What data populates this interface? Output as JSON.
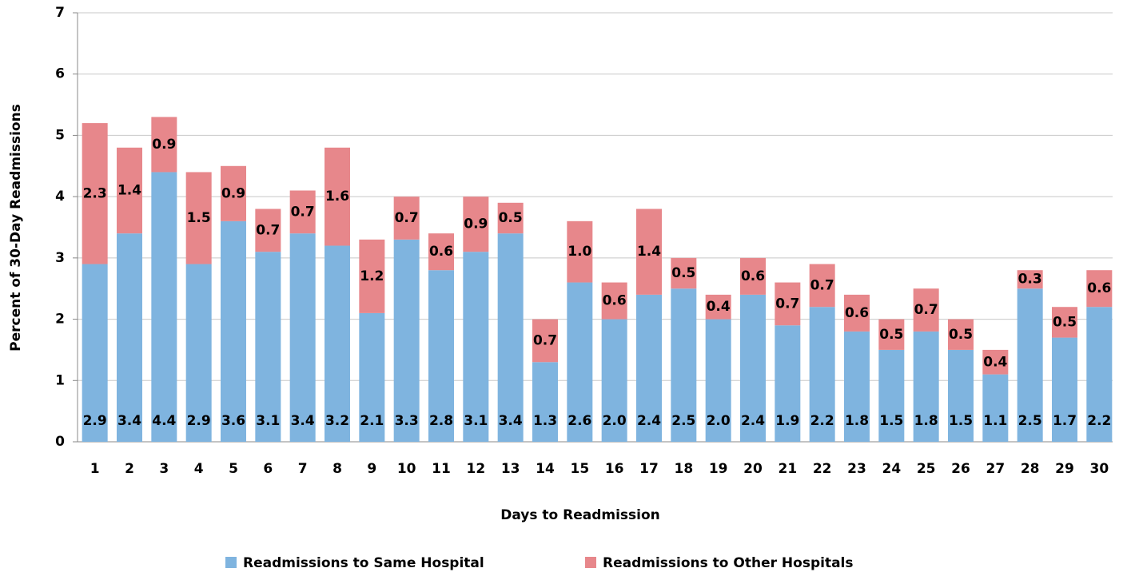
{
  "chart_data": {
    "type": "stacked_bar",
    "x_label": "Days to Readmission",
    "y_label": "Percent of 30-Day Readmissions",
    "categories": [
      "1",
      "2",
      "3",
      "4",
      "5",
      "6",
      "7",
      "8",
      "9",
      "10",
      "11",
      "12",
      "13",
      "14",
      "15",
      "16",
      "17",
      "18",
      "19",
      "20",
      "21",
      "22",
      "23",
      "24",
      "25",
      "26",
      "27",
      "28",
      "29",
      "30"
    ],
    "series": [
      {
        "name": "Readmissions to Same Hospital",
        "color": "#7fb4df",
        "values": [
          2.9,
          3.4,
          4.4,
          2.9,
          3.6,
          3.1,
          3.4,
          3.2,
          2.1,
          3.3,
          2.8,
          3.1,
          3.4,
          1.3,
          2.6,
          2.0,
          2.4,
          2.5,
          2.0,
          2.4,
          1.9,
          2.2,
          1.8,
          1.5,
          1.8,
          1.5,
          1.1,
          2.5,
          1.7,
          2.2
        ],
        "value_labels": [
          "2.9",
          "3.4",
          "4.4",
          "2.9",
          "3.6",
          "3.1",
          "3.4",
          "3.2",
          "2.1",
          "3.3",
          "2.8",
          "3.1",
          "3.4",
          "1.3",
          "2.6",
          "2.0",
          "2.4",
          "2.5",
          "2.0",
          "2.4",
          "1.9",
          "2.2",
          "1.8",
          "1.5",
          "1.8",
          "1.5",
          "1.1",
          "2.5",
          "1.7",
          "2.2"
        ]
      },
      {
        "name": "Readmissions to Other Hospitals",
        "color": "#e7878b",
        "values": [
          2.3,
          1.4,
          0.9,
          1.5,
          0.9,
          0.7,
          0.7,
          1.6,
          1.2,
          0.7,
          0.6,
          0.9,
          0.5,
          0.7,
          1.0,
          0.6,
          1.4,
          0.5,
          0.4,
          0.6,
          0.7,
          0.7,
          0.6,
          0.5,
          0.7,
          0.5,
          0.4,
          0.3,
          0.5,
          0.6
        ],
        "value_labels": [
          "2.3",
          "1.4",
          "0.9",
          "1.5",
          "0.9",
          "0.7",
          "0.7",
          "1.6",
          "1.2",
          "0.7",
          "0.6",
          "0.9",
          "0.5",
          "0.7",
          "1.0",
          "0.6",
          "1.4",
          "0.5",
          "0.4",
          "0.6",
          "0.7",
          "0.7",
          "0.6",
          "0.5",
          "0.7",
          "0.5",
          "0.4",
          "0.3",
          "0.5",
          "0.6"
        ]
      }
    ],
    "ylim": [
      0,
      7
    ],
    "yticks": [
      0,
      1,
      2,
      3,
      4,
      5,
      6,
      7
    ],
    "grid": true,
    "legend": "bottom"
  }
}
